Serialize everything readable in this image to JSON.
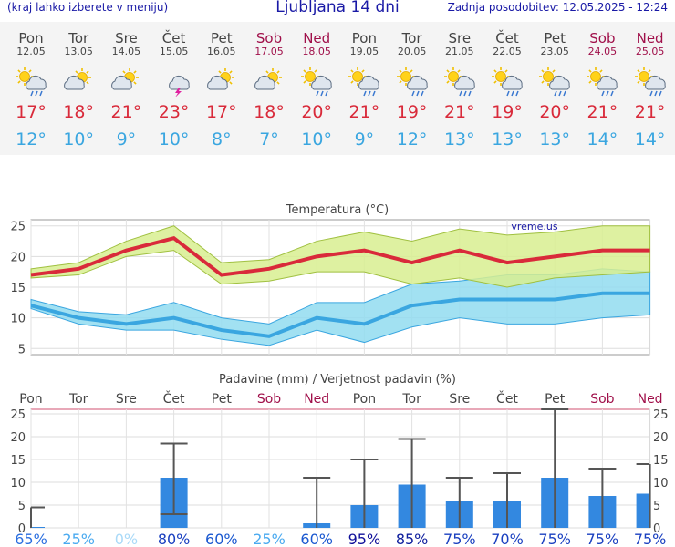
{
  "header": {
    "menu_hint": "(kraj lahko izberete v meniju)",
    "title": "Ljubljana 14 dni",
    "updated": "Zadnja posodobitev: 12.05.2025 - 12:24"
  },
  "colors": {
    "max": "#d92a3a",
    "min": "#3aa6e0",
    "weekend": "#a0104a",
    "bar": "#3388e0"
  },
  "days": [
    {
      "name": "Pon",
      "date": "12.05",
      "weekend": false,
      "icon": "sun-cloud-rain-icon",
      "tmax": "17°",
      "tmin": "12°"
    },
    {
      "name": "Tor",
      "date": "13.05",
      "weekend": false,
      "icon": "cloud-sun-icon",
      "tmax": "18°",
      "tmin": "10°"
    },
    {
      "name": "Sre",
      "date": "14.05",
      "weekend": false,
      "icon": "cloud-sun-icon",
      "tmax": "21°",
      "tmin": "9°"
    },
    {
      "name": "Čet",
      "date": "15.05",
      "weekend": false,
      "icon": "cloud-lightning-icon",
      "tmax": "23°",
      "tmin": "10°"
    },
    {
      "name": "Pet",
      "date": "16.05",
      "weekend": false,
      "icon": "cloud-sun-icon",
      "tmax": "17°",
      "tmin": "8°"
    },
    {
      "name": "Sob",
      "date": "17.05",
      "weekend": true,
      "icon": "cloud-sun-icon",
      "tmax": "18°",
      "tmin": "7°"
    },
    {
      "name": "Ned",
      "date": "18.05",
      "weekend": true,
      "icon": "sun-cloud-rain-icon",
      "tmax": "20°",
      "tmin": "10°"
    },
    {
      "name": "Pon",
      "date": "19.05",
      "weekend": false,
      "icon": "sun-cloud-rain-icon",
      "tmax": "21°",
      "tmin": "9°"
    },
    {
      "name": "Tor",
      "date": "20.05",
      "weekend": false,
      "icon": "sun-cloud-rain-icon",
      "tmax": "19°",
      "tmin": "12°"
    },
    {
      "name": "Sre",
      "date": "21.05",
      "weekend": false,
      "icon": "sun-cloud-rain-icon",
      "tmax": "21°",
      "tmin": "13°"
    },
    {
      "name": "Čet",
      "date": "22.05",
      "weekend": false,
      "icon": "sun-cloud-rain-icon",
      "tmax": "19°",
      "tmin": "13°"
    },
    {
      "name": "Pet",
      "date": "23.05",
      "weekend": false,
      "icon": "sun-cloud-rain-icon",
      "tmax": "20°",
      "tmin": "13°"
    },
    {
      "name": "Sob",
      "date": "24.05",
      "weekend": true,
      "icon": "sun-cloud-rain-icon",
      "tmax": "21°",
      "tmin": "14°"
    },
    {
      "name": "Ned",
      "date": "25.05",
      "weekend": true,
      "icon": "sun-cloud-rain-icon",
      "tmax": "21°",
      "tmin": "14°"
    }
  ],
  "chart_data": [
    {
      "type": "line",
      "title": "Temperatura (°C)",
      "watermark": "vreme.us",
      "ylim": [
        4,
        26
      ],
      "yticks": [
        5,
        10,
        15,
        20,
        25
      ],
      "grid": true,
      "series": [
        {
          "values": [
            17,
            18,
            21,
            23,
            17,
            18,
            20,
            21,
            19,
            21,
            19,
            20,
            21,
            21
          ],
          "band_low": [
            16.5,
            17,
            20,
            21,
            15.5,
            16,
            17.5,
            17.5,
            15.5,
            16.5,
            15,
            16.5,
            17,
            17.5
          ],
          "band_high": [
            18,
            19,
            22.5,
            25,
            19,
            19.5,
            22.5,
            24,
            22.5,
            24.5,
            23.5,
            24,
            25,
            25
          ]
        },
        {
          "values": [
            12,
            10,
            9,
            10,
            8,
            7,
            10,
            9,
            12,
            13,
            13,
            13,
            14,
            14
          ],
          "band_low": [
            11.5,
            9,
            8,
            8,
            6.5,
            5.5,
            8,
            6,
            8.5,
            10,
            9,
            9,
            10,
            10.5
          ],
          "band_high": [
            13,
            11,
            10.5,
            12.5,
            10,
            9,
            12.5,
            12.5,
            15.5,
            16,
            17,
            17,
            18,
            17.5
          ]
        }
      ]
    },
    {
      "type": "bar",
      "title": "Padavine (mm) / Verjetnost padavin (%)",
      "categories": [
        "Pon",
        "Tor",
        "Sre",
        "Čet",
        "Pet",
        "Sob",
        "Ned",
        "Pon",
        "Tor",
        "Sre",
        "Čet",
        "Pet",
        "Sob",
        "Ned"
      ],
      "weekend": [
        false,
        false,
        false,
        false,
        false,
        true,
        true,
        false,
        false,
        false,
        false,
        false,
        true,
        true
      ],
      "ylim": [
        0,
        26
      ],
      "yticks": [
        0,
        5,
        10,
        15,
        20,
        25
      ],
      "values": [
        0.2,
        0,
        0,
        11,
        0,
        0,
        1,
        5,
        9.5,
        6,
        6,
        11,
        7,
        7.5
      ],
      "range_low": [
        0,
        null,
        null,
        3,
        null,
        null,
        0,
        0,
        0,
        0,
        0,
        0,
        0,
        0
      ],
      "range_high": [
        4.5,
        null,
        null,
        18.5,
        null,
        null,
        11,
        15,
        19.5,
        11,
        12,
        26,
        13,
        14
      ],
      "probability": [
        "65%",
        "25%",
        "0%",
        "80%",
        "60%",
        "25%",
        "60%",
        "95%",
        "85%",
        "75%",
        "70%",
        "75%",
        "75%",
        "75%"
      ],
      "probability_colors": [
        "#2a6ee0",
        "#4aaaf0",
        "#aadaf8",
        "#1a40c0",
        "#1a58d0",
        "#4aaaf0",
        "#1a58d0",
        "#10109a",
        "#10209e",
        "#1a40c0",
        "#1a40c0",
        "#1a40c0",
        "#1a40c0",
        "#1a40c0"
      ]
    }
  ]
}
